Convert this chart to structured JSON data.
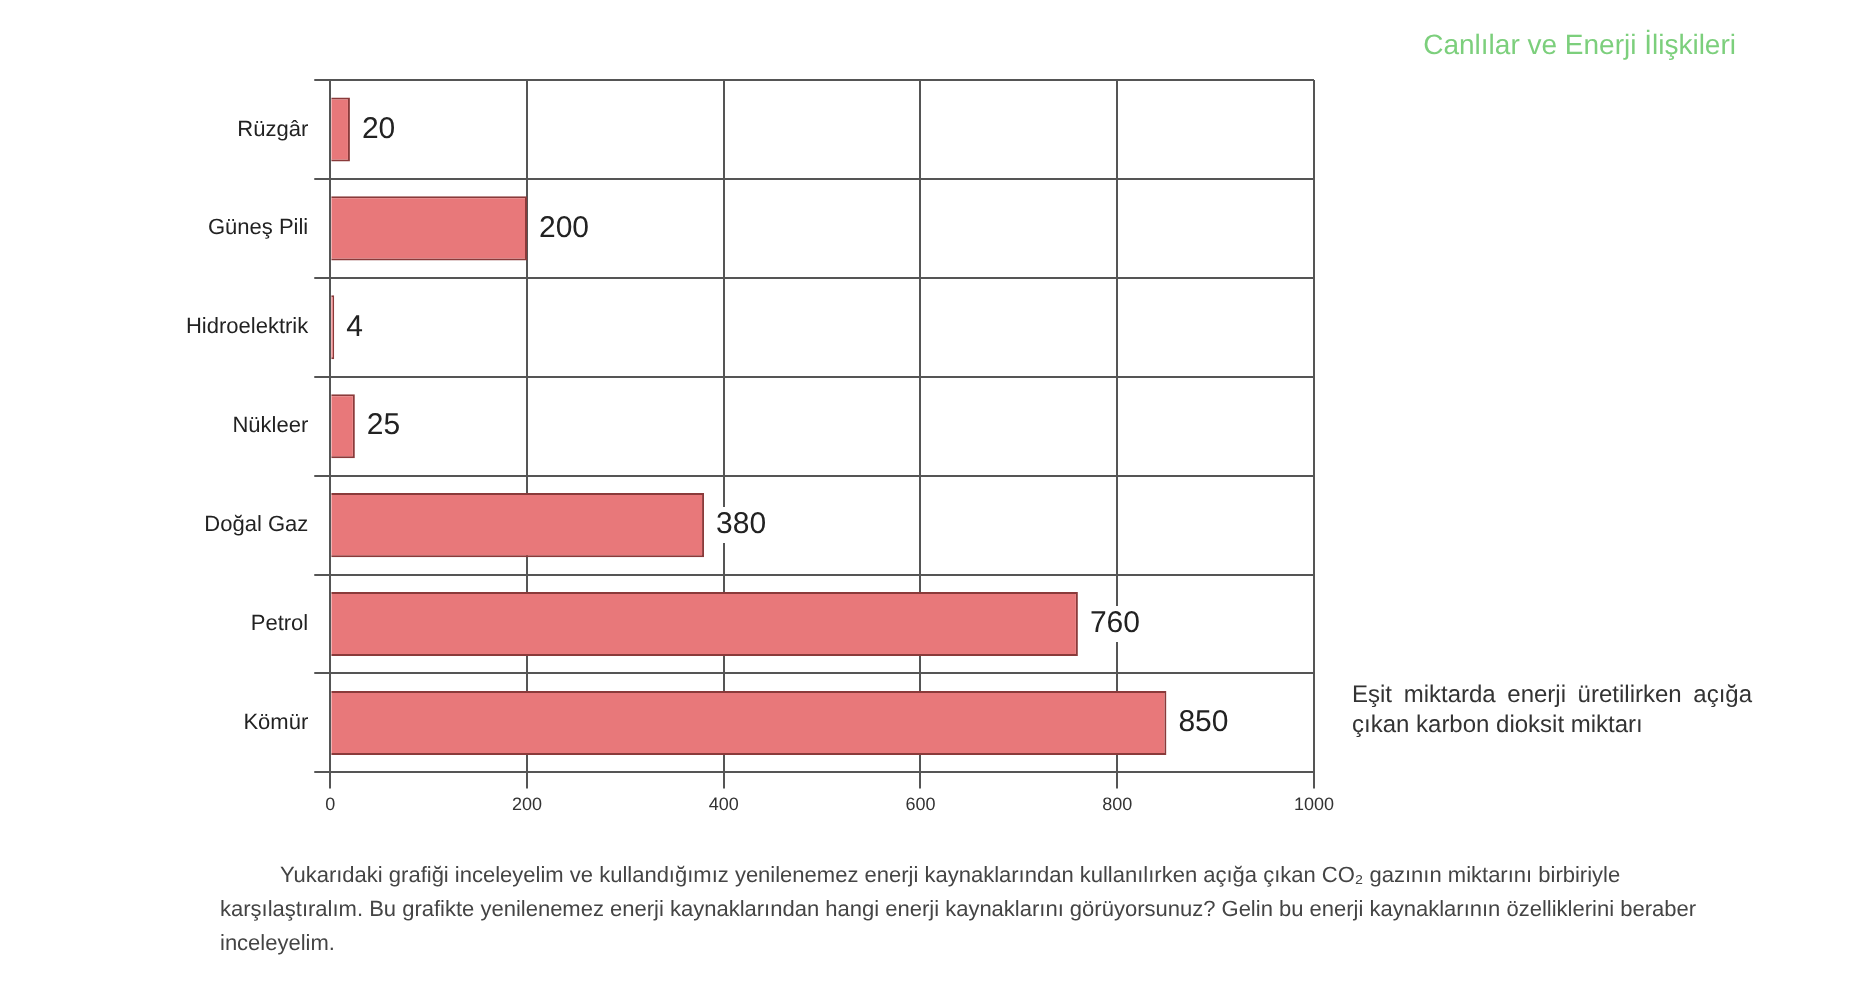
{
  "chart_data": {
    "type": "bar",
    "orientation": "horizontal",
    "categories": [
      "Rüzgâr",
      "Güneş Pili",
      "Hidroelektrik",
      "Nükleer",
      "Doğal Gaz",
      "Petrol",
      "Kömür"
    ],
    "values": [
      20,
      200,
      4,
      25,
      380,
      760,
      850
    ],
    "color": "#e8787a",
    "xlim": [
      0,
      1000
    ],
    "xticks": [
      0,
      200,
      400,
      600,
      800,
      1000
    ],
    "grid": true,
    "data_labels": true,
    "annotations": [
      "Canlılar ve Enerji İlişkileri",
      "Eşit miktarda enerji üretilirken açığa çıkan karbon dioksit miktarı",
      "Yukarıdaki grafiği inceleyelim ve kullandığımız yenilenemez enerji kaynaklarından kullanılırken açığa çıkan CO₂ gazının miktarını birbiriyle karşılaştıralım. Bu grafikte yenilenemez enerji kaynaklarından hangi enerji kaynaklarını görüyorsunuz? Gelin bu enerji kaynaklarının özelliklerini beraber inceleyelim."
    ]
  }
}
